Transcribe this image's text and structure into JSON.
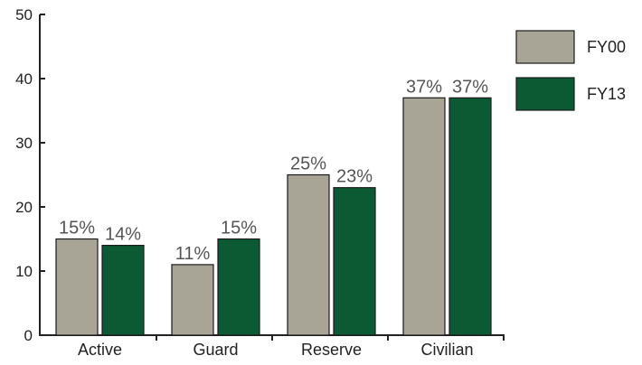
{
  "chart_data": {
    "type": "bar",
    "categories": [
      "Active",
      "Guard",
      "Reserve",
      "Civilian"
    ],
    "series": [
      {
        "name": "FY00",
        "values": [
          15,
          11,
          25,
          37
        ],
        "labels": [
          "15%",
          "11%",
          "25%",
          "37%"
        ],
        "color": "#a8a596"
      },
      {
        "name": "FY13",
        "values": [
          14,
          15,
          23,
          37
        ],
        "labels": [
          "14%",
          "15%",
          "23%",
          "37%"
        ],
        "color": "#0b5a34"
      }
    ],
    "ylim": [
      0,
      50
    ],
    "yticks": [
      "0",
      "10",
      "20",
      "30",
      "40",
      "50"
    ],
    "title": "",
    "xlabel": "",
    "ylabel": "",
    "legend_position": "top-right",
    "grid": false
  }
}
